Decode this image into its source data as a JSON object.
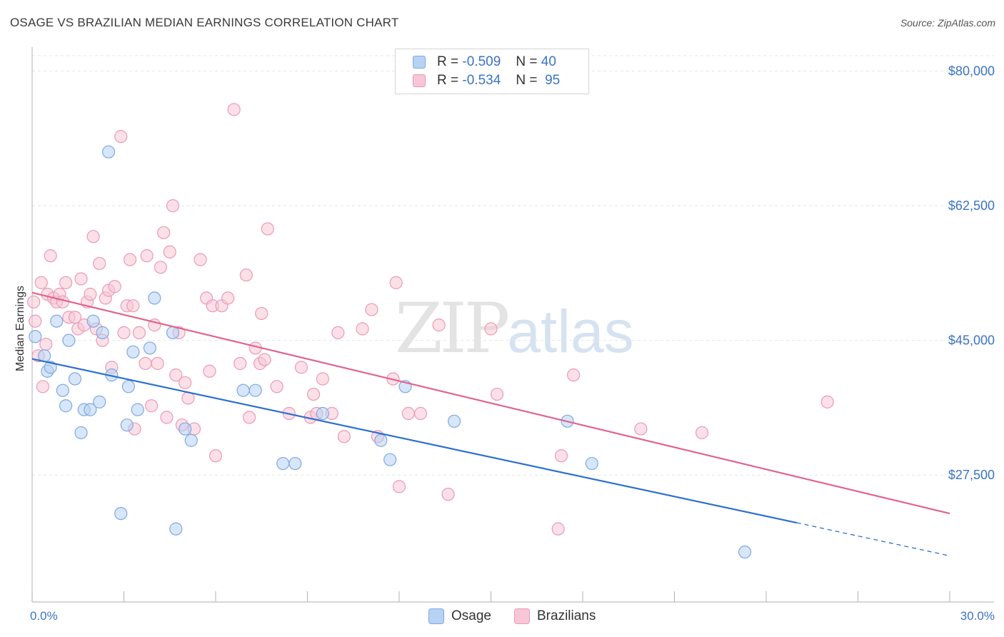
{
  "title": "OSAGE VS BRAZILIAN MEDIAN EARNINGS CORRELATION CHART",
  "source": "Source: ZipAtlas.com",
  "watermark": {
    "zip": "ZIP",
    "atlas": "atlas"
  },
  "legend": {
    "osage": {
      "r_label": "R =",
      "r_value": "-0.509",
      "n_label": "N =",
      "n_value": "40"
    },
    "brazilians": {
      "r_label": "R =",
      "r_value": "-0.534",
      "n_label": "N =",
      "n_value": "95"
    }
  },
  "colors": {
    "osage_fill": "#b7d2f3",
    "osage_stroke": "#7fa9e3",
    "osage_line": "#2e6fd0",
    "braz_fill": "#f8c6d6",
    "braz_stroke": "#eb9ab4",
    "braz_line": "#e0648d",
    "grid": "#e4e4e4",
    "tick_text": "#3b74c4"
  },
  "chart_data": {
    "type": "scatter",
    "xlabel": "",
    "ylabel": "Median Earnings",
    "xlim": [
      0,
      30
    ],
    "ylim": [
      11000,
      82000
    ],
    "x_tick_labels": [
      {
        "value": 0,
        "label": "0.0%"
      },
      {
        "value": 30,
        "label": "30.0%"
      }
    ],
    "x_minor_ticks": [
      3,
      6,
      9,
      12,
      15,
      18,
      21,
      24,
      27
    ],
    "y_ticks": [
      {
        "value": 80000,
        "label": "$80,000"
      },
      {
        "value": 62500,
        "label": "$62,500"
      },
      {
        "value": 45000,
        "label": "$45,000"
      },
      {
        "value": 27500,
        "label": "$27,500"
      }
    ],
    "series": [
      {
        "name": "Osage",
        "trend": {
          "x0": 0,
          "y0": 42600,
          "x1": 25,
          "y1": 21300,
          "dash_to": 30,
          "dash_y": 17000
        },
        "points": [
          [
            0.1,
            45500
          ],
          [
            0.4,
            43000
          ],
          [
            0.5,
            41000
          ],
          [
            0.6,
            41500
          ],
          [
            0.8,
            47500
          ],
          [
            1.0,
            38500
          ],
          [
            1.1,
            36500
          ],
          [
            1.2,
            45000
          ],
          [
            1.4,
            40000
          ],
          [
            1.6,
            33000
          ],
          [
            1.7,
            36000
          ],
          [
            1.9,
            36000
          ],
          [
            2.0,
            47500
          ],
          [
            2.2,
            37000
          ],
          [
            2.3,
            46000
          ],
          [
            2.6,
            40500
          ],
          [
            2.9,
            22500
          ],
          [
            3.1,
            34000
          ],
          [
            3.15,
            39000
          ],
          [
            3.3,
            43500
          ],
          [
            3.45,
            36000
          ],
          [
            3.85,
            44000
          ],
          [
            4.0,
            50500
          ],
          [
            4.6,
            46000
          ],
          [
            4.7,
            20500
          ],
          [
            5.0,
            33500
          ],
          [
            5.2,
            32000
          ],
          [
            6.9,
            38500
          ],
          [
            7.3,
            38500
          ],
          [
            8.2,
            29000
          ],
          [
            8.6,
            29000
          ],
          [
            9.5,
            35500
          ],
          [
            11.4,
            32000
          ],
          [
            11.7,
            29500
          ],
          [
            12.2,
            39000
          ],
          [
            13.8,
            34500
          ],
          [
            17.5,
            34500
          ],
          [
            18.3,
            29000
          ],
          [
            23.3,
            17500
          ],
          [
            2.5,
            69500
          ]
        ]
      },
      {
        "name": "Brazilians",
        "trend": {
          "x0": 0,
          "y0": 51200,
          "x1": 30,
          "y1": 22500
        },
        "points": [
          [
            0.1,
            47500
          ],
          [
            0.2,
            43000
          ],
          [
            0.3,
            52500
          ],
          [
            0.5,
            51000
          ],
          [
            0.6,
            56000
          ],
          [
            0.7,
            50500
          ],
          [
            0.8,
            50000
          ],
          [
            0.9,
            51000
          ],
          [
            1.0,
            50000
          ],
          [
            1.1,
            52500
          ],
          [
            1.2,
            48000
          ],
          [
            1.4,
            48000
          ],
          [
            1.5,
            46500
          ],
          [
            1.6,
            53000
          ],
          [
            1.7,
            47000
          ],
          [
            1.8,
            50000
          ],
          [
            1.9,
            51000
          ],
          [
            2.0,
            58500
          ],
          [
            2.1,
            46500
          ],
          [
            2.2,
            55000
          ],
          [
            2.3,
            45000
          ],
          [
            2.4,
            50500
          ],
          [
            2.5,
            51500
          ],
          [
            2.6,
            41500
          ],
          [
            2.7,
            52000
          ],
          [
            2.9,
            71500
          ],
          [
            3.0,
            46000
          ],
          [
            3.1,
            49500
          ],
          [
            3.2,
            55500
          ],
          [
            3.3,
            49500
          ],
          [
            3.35,
            33500
          ],
          [
            3.5,
            46000
          ],
          [
            3.7,
            42000
          ],
          [
            3.75,
            56000
          ],
          [
            3.9,
            36500
          ],
          [
            4.0,
            47000
          ],
          [
            4.1,
            42000
          ],
          [
            4.2,
            54500
          ],
          [
            4.3,
            59000
          ],
          [
            4.4,
            35000
          ],
          [
            4.5,
            56500
          ],
          [
            4.6,
            62500
          ],
          [
            4.7,
            40500
          ],
          [
            4.8,
            46000
          ],
          [
            4.9,
            34000
          ],
          [
            5.0,
            39500
          ],
          [
            5.1,
            37500
          ],
          [
            5.3,
            33500
          ],
          [
            5.5,
            55500
          ],
          [
            5.7,
            50500
          ],
          [
            5.8,
            41000
          ],
          [
            5.9,
            49500
          ],
          [
            6.0,
            30000
          ],
          [
            6.2,
            49500
          ],
          [
            6.4,
            50500
          ],
          [
            6.6,
            75000
          ],
          [
            6.8,
            42000
          ],
          [
            7.0,
            53500
          ],
          [
            7.1,
            35000
          ],
          [
            7.3,
            44000
          ],
          [
            7.45,
            42000
          ],
          [
            7.5,
            48500
          ],
          [
            7.6,
            42500
          ],
          [
            7.7,
            59500
          ],
          [
            8.0,
            39000
          ],
          [
            8.4,
            35500
          ],
          [
            8.8,
            41500
          ],
          [
            9.1,
            35000
          ],
          [
            9.2,
            38000
          ],
          [
            9.3,
            35500
          ],
          [
            9.5,
            40000
          ],
          [
            9.8,
            35500
          ],
          [
            10.0,
            46000
          ],
          [
            10.2,
            32500
          ],
          [
            10.8,
            46500
          ],
          [
            11.1,
            49000
          ],
          [
            11.3,
            32500
          ],
          [
            11.8,
            40000
          ],
          [
            11.9,
            52500
          ],
          [
            12.0,
            26000
          ],
          [
            12.3,
            35500
          ],
          [
            12.7,
            35500
          ],
          [
            13.3,
            47000
          ],
          [
            13.6,
            25000
          ],
          [
            15.0,
            46500
          ],
          [
            15.2,
            38000
          ],
          [
            17.2,
            20500
          ],
          [
            17.3,
            30000
          ],
          [
            17.7,
            40500
          ],
          [
            19.9,
            33500
          ],
          [
            21.9,
            33000
          ],
          [
            26.0,
            37000
          ],
          [
            0.05,
            50000
          ],
          [
            0.45,
            44500
          ],
          [
            0.35,
            39000
          ]
        ]
      }
    ]
  },
  "bottom_legend": {
    "osage_label": "Osage",
    "braz_label": "Brazilians"
  }
}
